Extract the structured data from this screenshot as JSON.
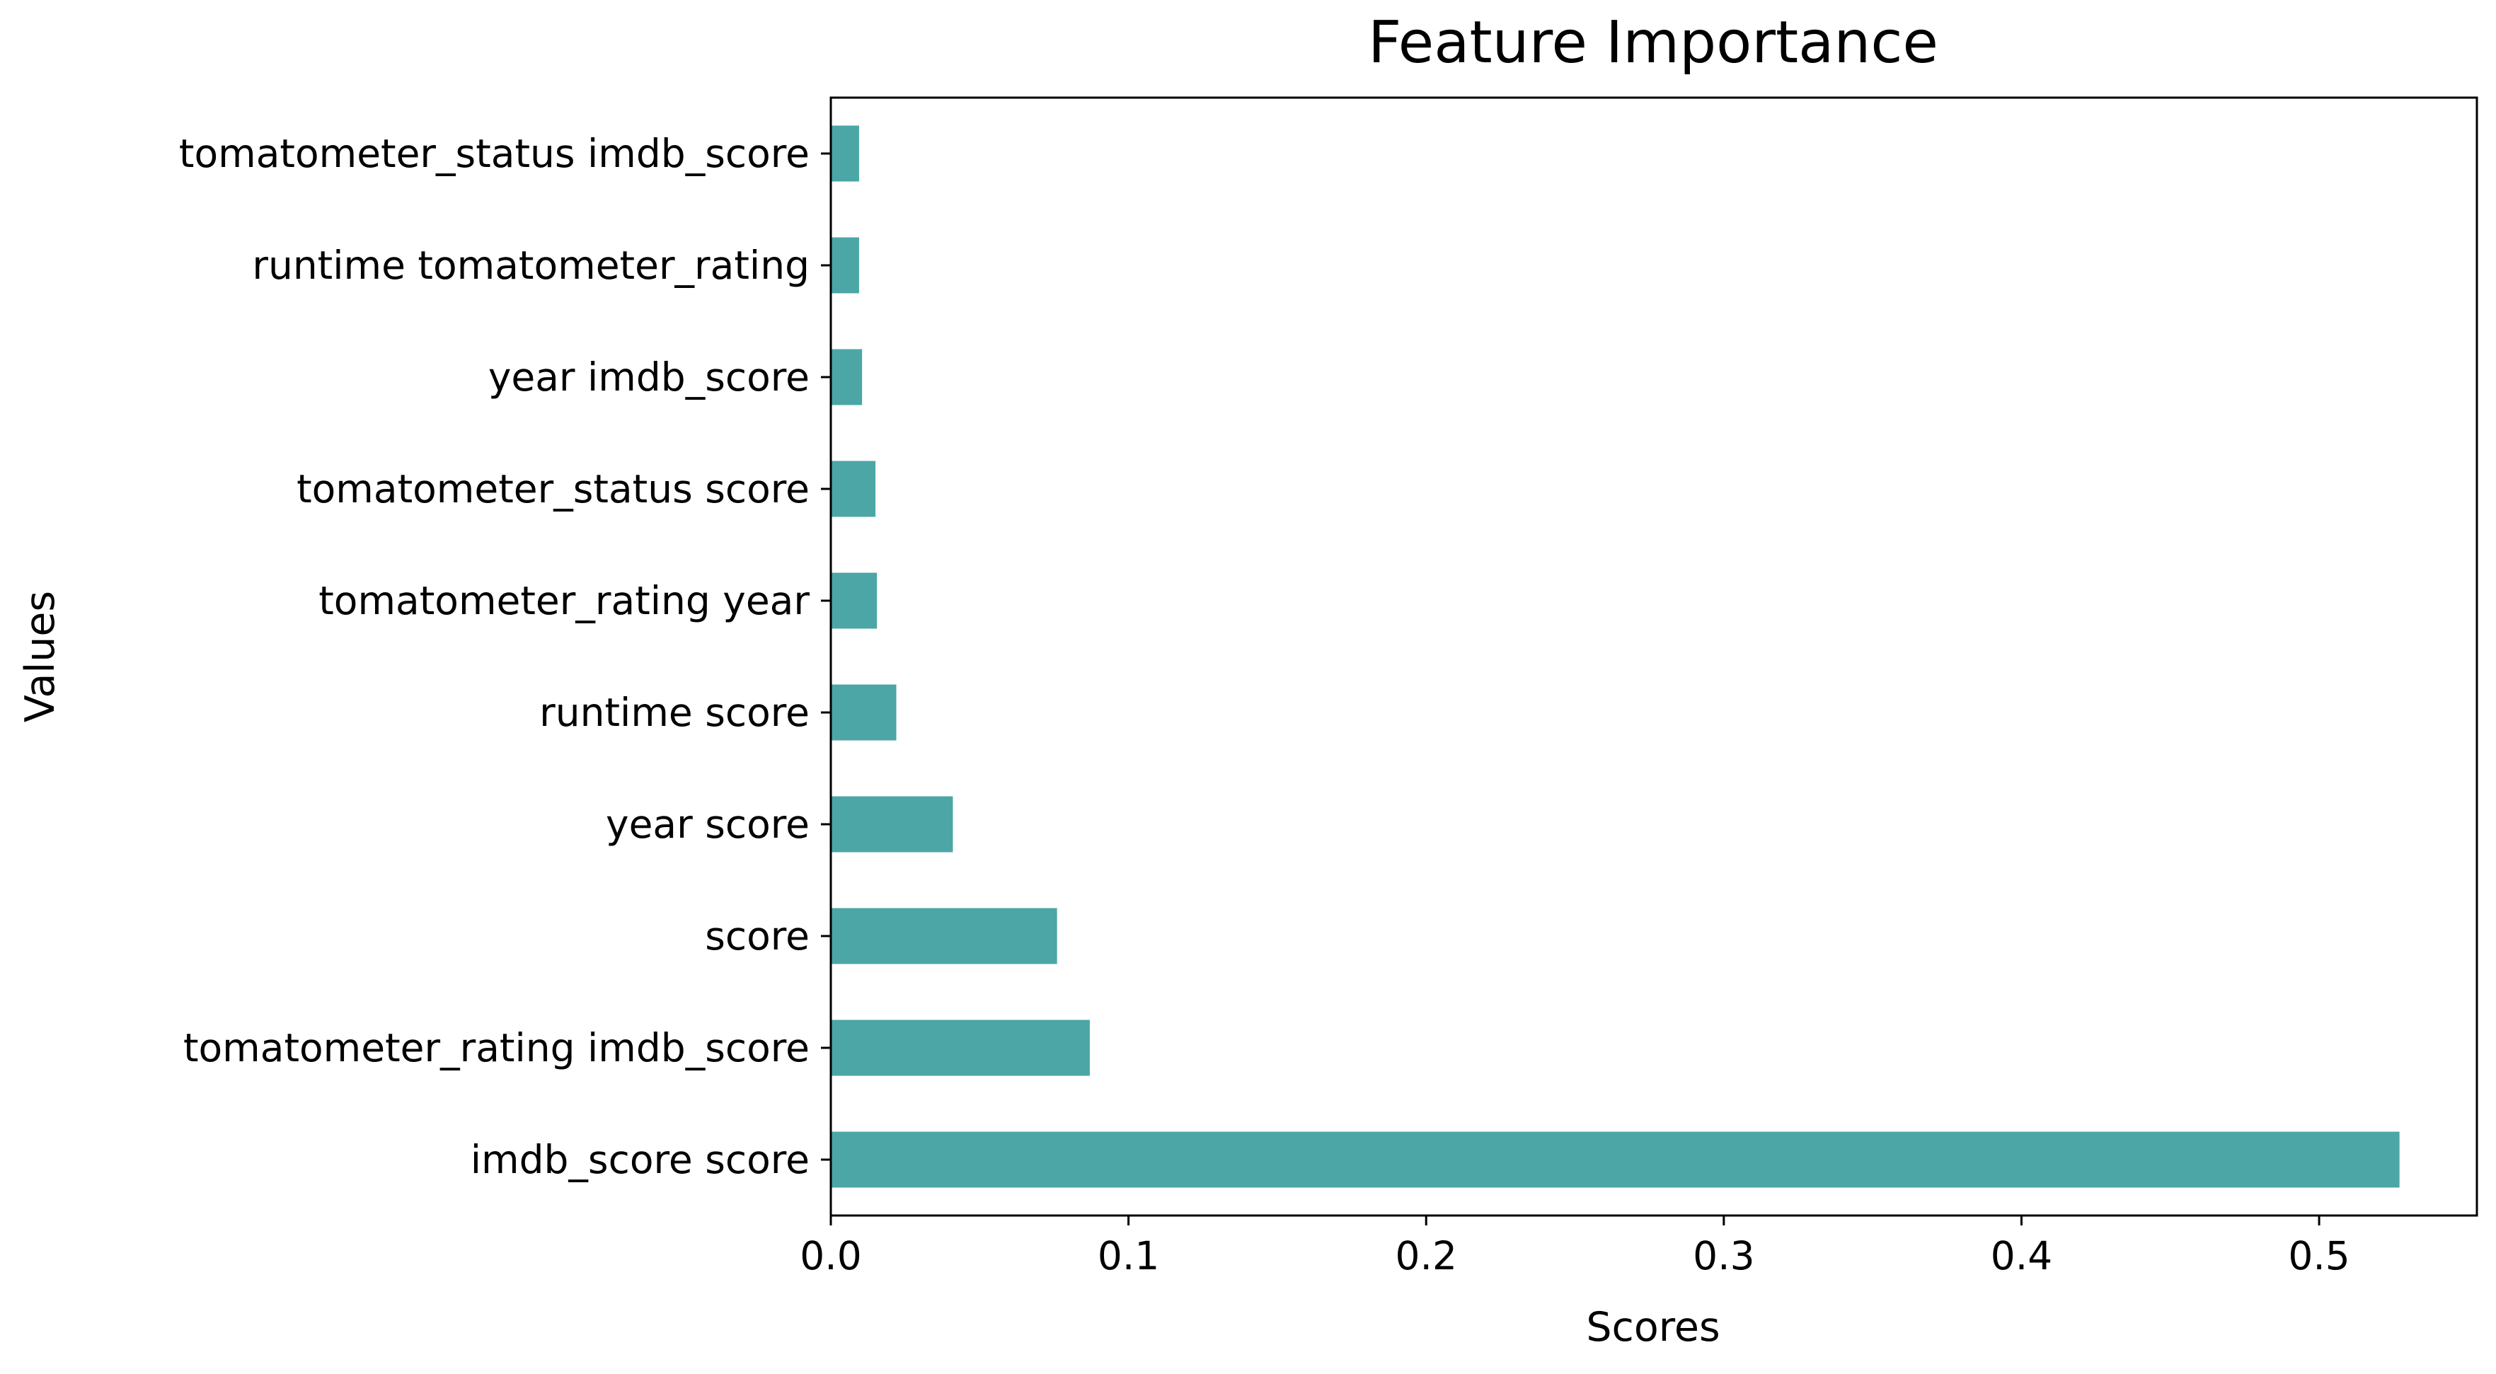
{
  "chart_data": {
    "type": "bar",
    "orientation": "horizontal",
    "title": "Feature Importance",
    "xlabel": "Scores",
    "ylabel": "Values",
    "categories": [
      "imdb_score score",
      "tomatometer_rating imdb_score",
      "score",
      "year score",
      "runtime score",
      "tomatometer_rating year",
      "tomatometer_status score",
      "year imdb_score",
      "runtime tomatometer_rating",
      "tomatometer_status imdb_score"
    ],
    "values": [
      0.527,
      0.087,
      0.076,
      0.041,
      0.022,
      0.0155,
      0.015,
      0.0105,
      0.0095,
      0.0095
    ],
    "xlim": [
      0,
      0.553
    ],
    "xticks": [
      0.0,
      0.1,
      0.2,
      0.3,
      0.4,
      0.5
    ],
    "xtick_labels": [
      "0.0",
      "0.1",
      "0.2",
      "0.3",
      "0.4",
      "0.5"
    ],
    "bar_color": "#4ca6a6",
    "grid": false,
    "legend": "none"
  }
}
